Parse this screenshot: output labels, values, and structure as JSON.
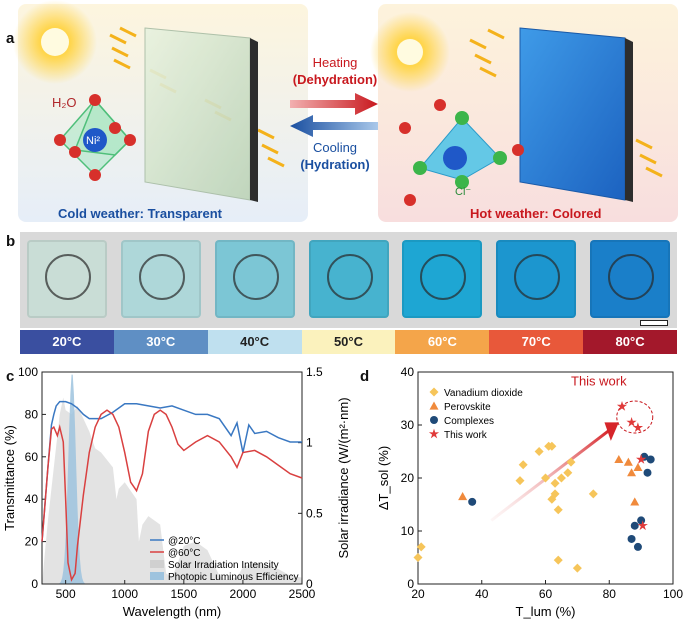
{
  "panel_a": {
    "letter": "a",
    "h2o_label": "H₂O",
    "ni_label": "Ni²",
    "cl_label": "Cl⁻",
    "heating_label": "Heating",
    "heating_sub": "(Dehydration)",
    "cooling_label": "Cooling",
    "cooling_sub": "(Hydration)",
    "cold_caption": "Cold weather: Transparent",
    "hot_caption": "Hot weather: Colored"
  },
  "panel_b": {
    "letter": "b",
    "temperatures": [
      "20°C",
      "30°C",
      "40°C",
      "50°C",
      "60°C",
      "70°C",
      "80°C"
    ],
    "temp_colors": [
      "#3a4fa0",
      "#5f8fc4",
      "#bfe0ef",
      "#fbf2bd",
      "#f4a54a",
      "#e8583a",
      "#a3182b"
    ],
    "sample_colors": [
      "#c9ddd6",
      "#aed7d9",
      "#7cc6d5",
      "#47b3cf",
      "#1ea6d3",
      "#1c96cf",
      "#1a7fc9"
    ]
  },
  "panel_c": {
    "letter": "c",
    "chart_data": {
      "type": "line",
      "xlabel": "Wavelength (nm)",
      "ylabel": "Transmittance (%)",
      "y2label": "Solar irradiance (W/(m²·nm)",
      "xlim": [
        300,
        2500
      ],
      "ylim": [
        0,
        100
      ],
      "y2lim": [
        0,
        1.5
      ],
      "xticks": [
        "500",
        "1000",
        "1500",
        "2000",
        "2500"
      ],
      "yticks": [
        "0",
        "20",
        "40",
        "60",
        "80",
        "100"
      ],
      "y2ticks": [
        "0",
        "0.5",
        "1",
        "1.5"
      ],
      "series": [
        {
          "name": "@20°C",
          "color": "#3a78c2",
          "x": [
            300,
            350,
            380,
            400,
            420,
            450,
            500,
            550,
            600,
            650,
            700,
            800,
            900,
            1000,
            1100,
            1200,
            1300,
            1400,
            1500,
            1600,
            1700,
            1800,
            1900,
            1950,
            2000,
            2050,
            2100,
            2200,
            2300,
            2400,
            2500
          ],
          "y": [
            20,
            55,
            75,
            80,
            84,
            86,
            86,
            85,
            83,
            80,
            78,
            78,
            81,
            85,
            85,
            84,
            83,
            84,
            82,
            80,
            80,
            78,
            70,
            76,
            62,
            75,
            71,
            72,
            69,
            67,
            67
          ]
        },
        {
          "name": "@60°C",
          "color": "#d94040",
          "x": [
            300,
            350,
            380,
            400,
            430,
            450,
            480,
            500,
            520,
            550,
            580,
            600,
            650,
            700,
            750,
            800,
            850,
            900,
            950,
            1000,
            1050,
            1100,
            1150,
            1200,
            1250,
            1300,
            1350,
            1400,
            1450,
            1500,
            1600,
            1700,
            1800,
            1900,
            1950,
            2000,
            2100,
            2200,
            2300,
            2400,
            2500
          ],
          "y": [
            20,
            55,
            73,
            74,
            70,
            74,
            67,
            40,
            10,
            2,
            5,
            18,
            42,
            62,
            74,
            80,
            82,
            80,
            74,
            62,
            48,
            44,
            52,
            72,
            80,
            82,
            80,
            74,
            66,
            63,
            67,
            70,
            67,
            60,
            55,
            62,
            63,
            60,
            56,
            52,
            50
          ]
        },
        {
          "name": "Solar Irradiation Intensity",
          "color": "#d0d0d0"
        },
        {
          "name": "Photopic Luminous Efficiency",
          "color": "#9ec3de"
        }
      ]
    }
  },
  "panel_d": {
    "letter": "d",
    "this_work_label": "This work",
    "chart_data": {
      "type": "scatter",
      "xlabel": "T_lum (%)",
      "ylabel": "ΔT_sol (%)",
      "xlim": [
        20,
        100
      ],
      "ylim": [
        0,
        40
      ],
      "xticks": [
        "20",
        "40",
        "60",
        "80",
        "100"
      ],
      "yticks": [
        "0",
        "10",
        "20",
        "30",
        "40"
      ],
      "series": [
        {
          "name": "Vanadium dioxide",
          "color": "#f6c55a",
          "marker": "diamond",
          "x": [
            20,
            21,
            52,
            53,
            58,
            60,
            61,
            62,
            62,
            63,
            63,
            64,
            64,
            65,
            67,
            68,
            70,
            75
          ],
          "y": [
            5,
            7,
            19.5,
            22.5,
            25,
            20,
            26,
            26,
            16,
            17,
            19,
            4.5,
            14,
            20,
            21,
            23,
            3,
            17
          ]
        },
        {
          "name": "Perovskite",
          "color": "#f08a3c",
          "marker": "triangle",
          "x": [
            34,
            83,
            86,
            87,
            88,
            89
          ],
          "y": [
            16.5,
            23.5,
            23,
            21,
            15.5,
            22
          ]
        },
        {
          "name": "Complexes",
          "color": "#1f4a78",
          "marker": "circle",
          "x": [
            37,
            87,
            88,
            89,
            90,
            91,
            92,
            93
          ],
          "y": [
            15.5,
            8.5,
            11,
            7,
            12,
            24,
            21,
            23.5
          ]
        },
        {
          "name": "This work",
          "color": "#e03a3a",
          "marker": "star",
          "x": [
            84,
            87,
            89,
            90,
            90.5
          ],
          "y": [
            33.5,
            30.5,
            29.5,
            23.5,
            11
          ]
        }
      ]
    }
  }
}
